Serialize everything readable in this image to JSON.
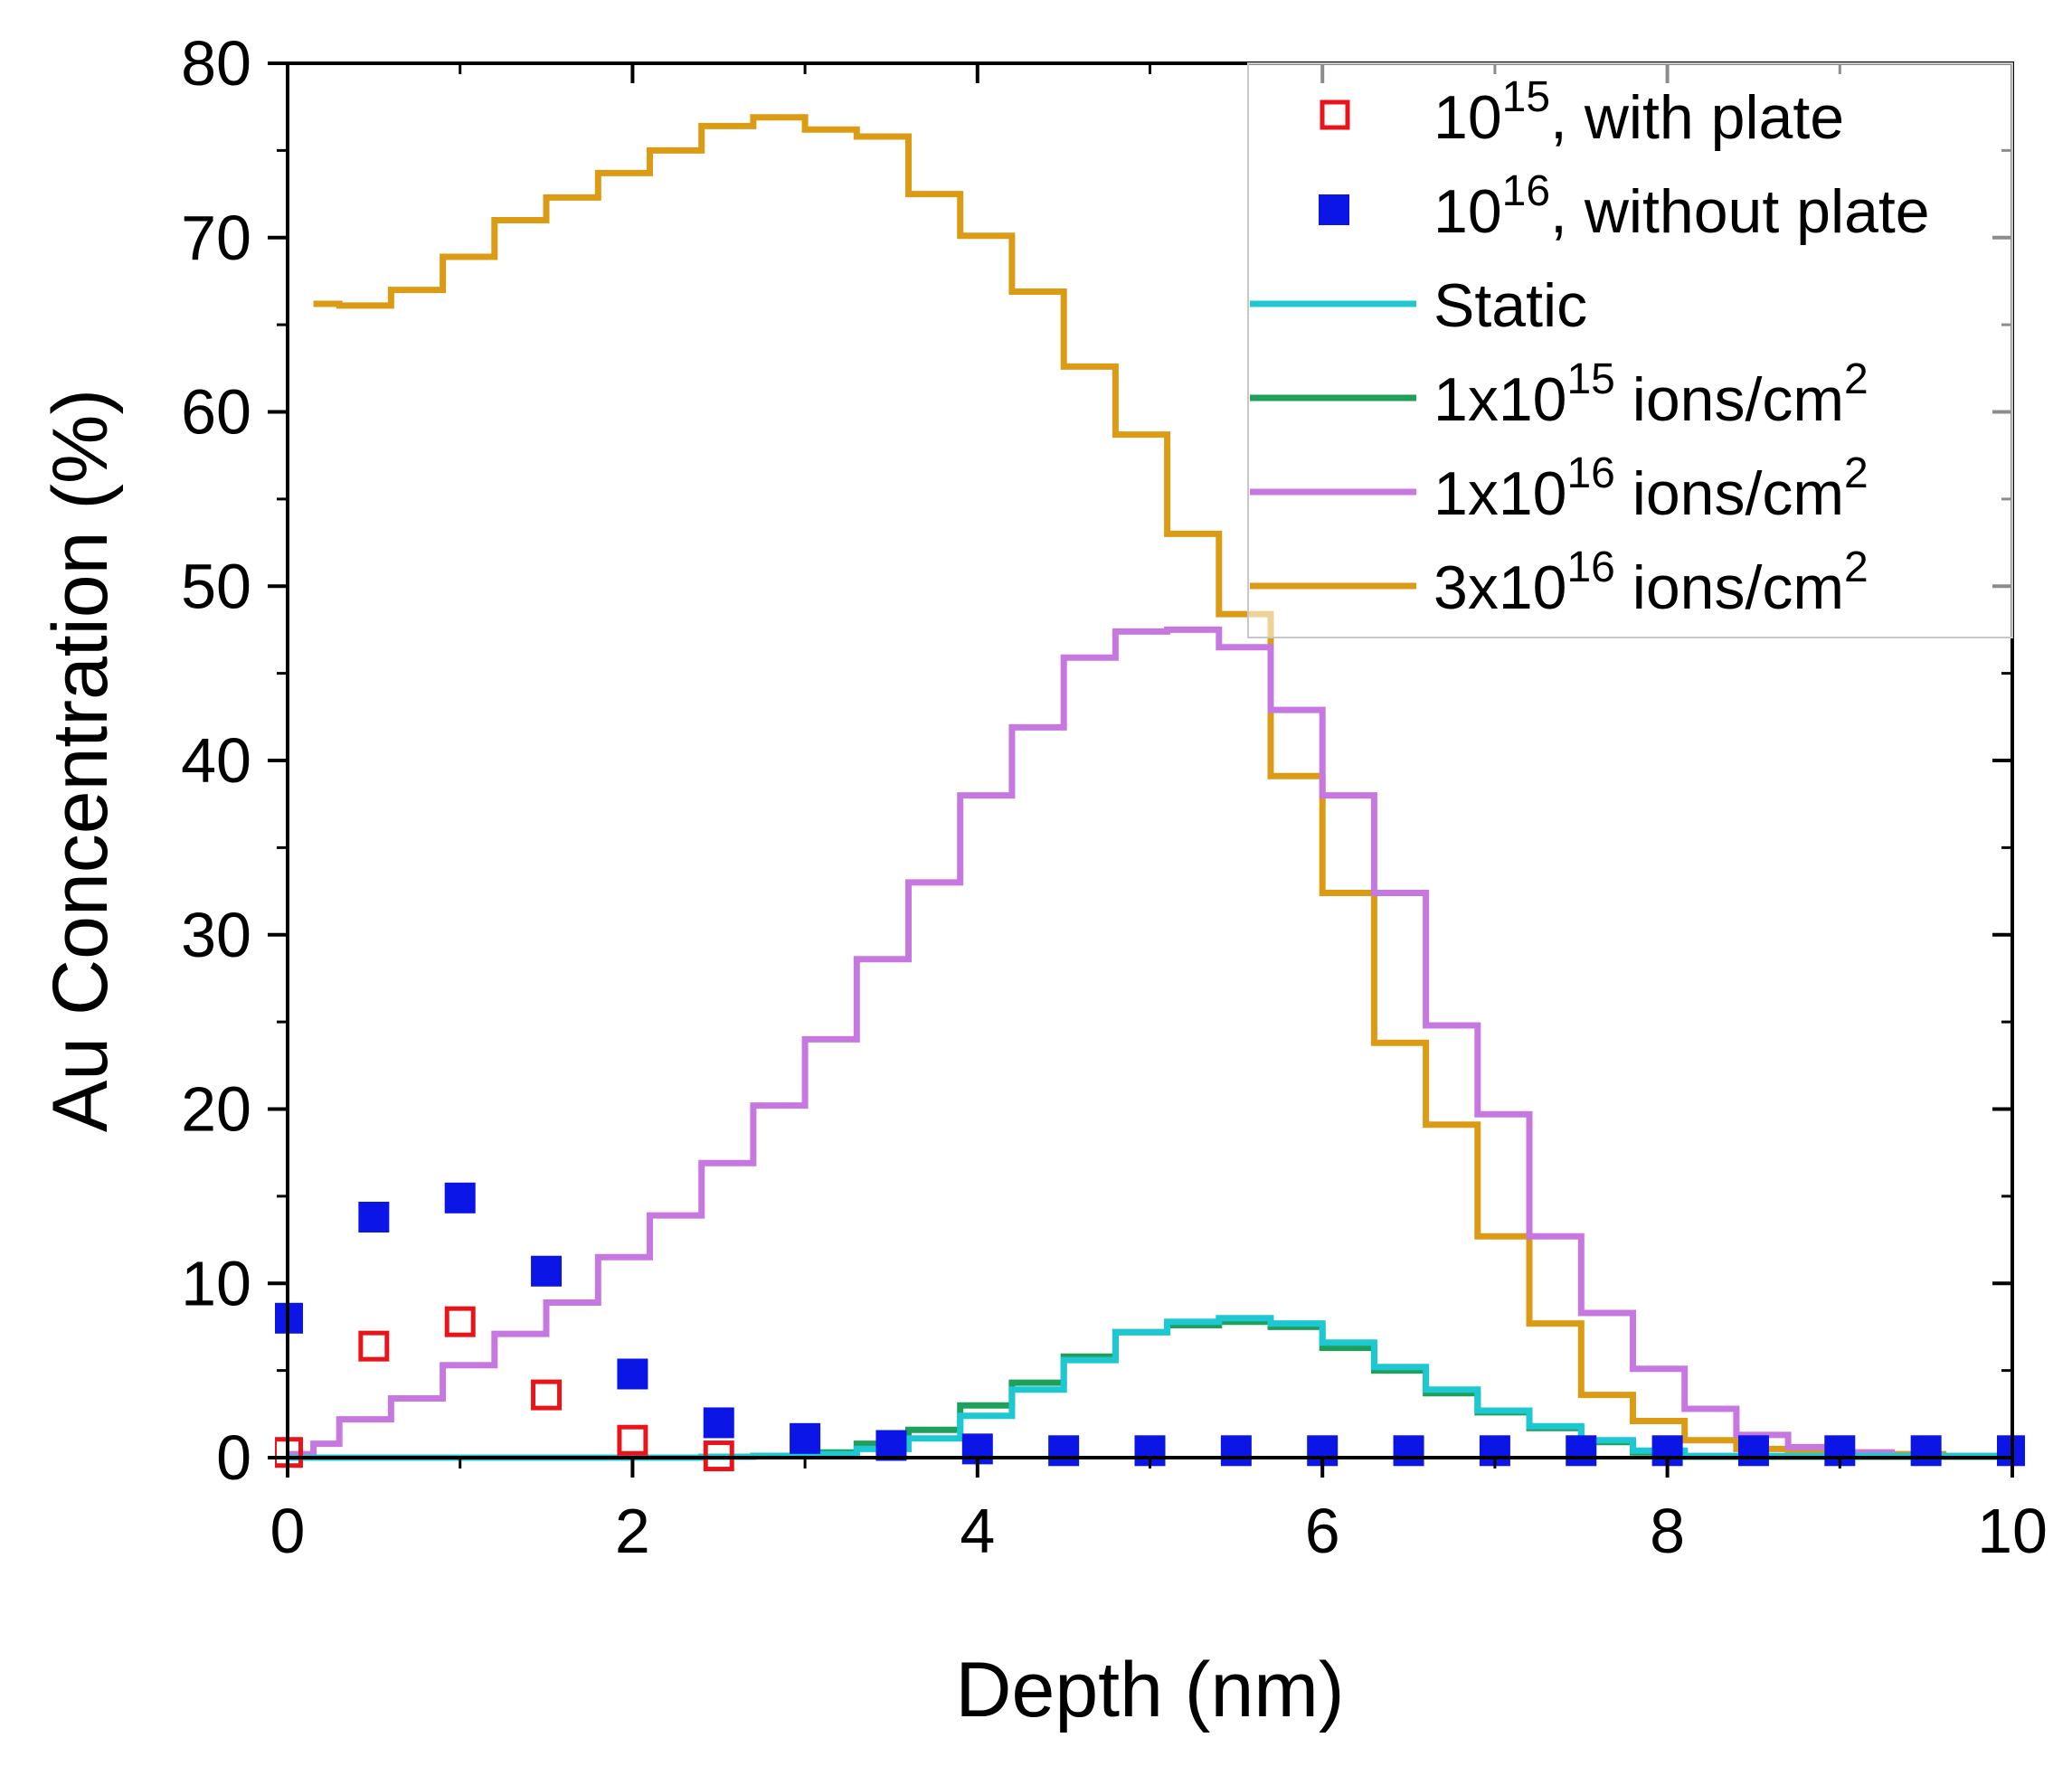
{
  "chart_data": {
    "type": "line",
    "title": "",
    "xlabel": "Depth (nm)",
    "ylabel": "Au Concentration (%)",
    "xlim": [
      0,
      10
    ],
    "ylim": [
      0,
      80
    ],
    "xticks": [
      0,
      2,
      4,
      6,
      8,
      10
    ],
    "yticks": [
      0,
      10,
      20,
      30,
      40,
      50,
      60,
      70,
      80
    ],
    "grid": false,
    "legend_position": "top-right",
    "legend": [
      {
        "label_main": "10",
        "label_sup": "15",
        "label_tail": ", with plate",
        "label_sup2": "",
        "style": "open-square",
        "color": "#e8141a"
      },
      {
        "label_main": "10",
        "label_sup": "16",
        "label_tail": ", without plate",
        "label_sup2": "",
        "style": "filled-square",
        "color": "#0b16e6"
      },
      {
        "label_main": "Static",
        "label_sup": "",
        "label_tail": "",
        "label_sup2": "",
        "style": "line",
        "color": "#1ec8d2"
      },
      {
        "label_main": "1x10",
        "label_sup": "15",
        "label_tail": " ions/cm",
        "label_sup2": "2",
        "style": "line",
        "color": "#1ea05a"
      },
      {
        "label_main": "1x10",
        "label_sup": "16",
        "label_tail": " ions/cm",
        "label_sup2": "2",
        "style": "line",
        "color": "#c778e0"
      },
      {
        "label_main": "3x10",
        "label_sup": "16",
        "label_tail": " ions/cm",
        "label_sup2": "2",
        "style": "line",
        "color": "#dc9b14"
      }
    ],
    "series": [
      {
        "name": "10^15, with plate",
        "kind": "scatter",
        "marker": "open-square",
        "color": "#e8141a",
        "x": [
          0,
          0.5,
          1.0,
          1.5,
          2.0,
          2.5
        ],
        "y": [
          0.3,
          6.4,
          7.8,
          3.6,
          1.0,
          0.1
        ]
      },
      {
        "name": "10^16, without plate",
        "kind": "scatter",
        "marker": "filled-square",
        "color": "#0b16e6",
        "x": [
          0,
          0.5,
          1.0,
          1.5,
          2.0,
          2.5,
          3.0,
          3.5,
          4.0,
          4.5,
          5.0,
          5.5,
          6.0,
          6.5,
          7.0,
          7.5,
          8.0,
          8.5,
          9.0,
          9.5,
          10.0
        ],
        "y": [
          8.0,
          13.8,
          14.9,
          10.7,
          4.8,
          2.0,
          1.1,
          0.7,
          0.5,
          0.4,
          0.4,
          0.4,
          0.4,
          0.4,
          0.4,
          0.4,
          0.4,
          0.4,
          0.4,
          0.4,
          0.4
        ]
      },
      {
        "name": "1x10^15 ions/cm2",
        "kind": "step",
        "color": "#1ea05a",
        "x_edges": [
          0,
          2.4,
          2.7,
          3.0,
          3.3,
          3.6,
          3.9,
          4.2,
          4.5,
          4.8,
          5.1,
          5.4,
          5.7,
          6.0,
          6.3,
          6.6,
          6.9,
          7.2,
          7.5,
          7.8,
          8.1,
          10
        ],
        "values": [
          0,
          0.05,
          0.1,
          0.3,
          0.8,
          1.6,
          3.0,
          4.3,
          5.8,
          7.2,
          7.6,
          7.8,
          7.5,
          6.3,
          5.0,
          3.7,
          2.6,
          1.7,
          0.9,
          0.3,
          0.05
        ]
      },
      {
        "name": "Static",
        "kind": "step",
        "color": "#1ec8d2",
        "x_edges": [
          0,
          2.4,
          2.7,
          3.0,
          3.3,
          3.6,
          3.9,
          4.2,
          4.5,
          4.8,
          5.1,
          5.4,
          5.7,
          6.0,
          6.3,
          6.6,
          6.9,
          7.2,
          7.5,
          7.8,
          8.1,
          10
        ],
        "values": [
          0,
          0.05,
          0.1,
          0.2,
          0.5,
          1.1,
          2.4,
          3.9,
          5.6,
          7.2,
          7.8,
          8.0,
          7.7,
          6.6,
          5.2,
          3.9,
          2.7,
          1.8,
          1.0,
          0.4,
          0.1
        ]
      },
      {
        "name": "1x10^16 ions/cm2",
        "kind": "step",
        "color": "#c778e0",
        "x_edges": [
          0,
          0.15,
          0.3,
          0.6,
          0.9,
          1.2,
          1.5,
          1.8,
          2.1,
          2.4,
          2.7,
          3.0,
          3.3,
          3.6,
          3.9,
          4.2,
          4.5,
          4.8,
          5.1,
          5.4,
          5.7,
          6.0,
          6.3,
          6.6,
          6.9,
          7.2,
          7.5,
          7.8,
          8.1,
          8.4,
          8.7,
          9.0,
          9.3,
          9.6,
          10
        ],
        "values": [
          0.2,
          0.8,
          2.2,
          3.4,
          5.3,
          7.1,
          8.9,
          11.5,
          13.9,
          16.9,
          20.2,
          24.0,
          28.6,
          33.0,
          38.0,
          41.9,
          45.9,
          47.4,
          47.5,
          46.5,
          42.9,
          38.0,
          32.4,
          24.8,
          19.7,
          12.7,
          8.3,
          5.1,
          2.8,
          1.3,
          0.6,
          0.3,
          0.1,
          0.05
        ]
      },
      {
        "name": "3x10^16 ions/cm2",
        "kind": "step",
        "color": "#dc9b14",
        "x_edges": [
          0.15,
          0.3,
          0.6,
          0.9,
          1.2,
          1.5,
          1.8,
          2.1,
          2.4,
          2.7,
          3.0,
          3.3,
          3.6,
          3.9,
          4.2,
          4.5,
          4.8,
          5.1,
          5.4,
          5.7,
          6.0,
          6.3,
          6.6,
          6.9,
          7.2,
          7.5,
          7.8,
          8.1,
          8.4,
          8.7,
          9.0,
          9.3,
          9.6,
          10
        ],
        "values": [
          66.2,
          66.1,
          67.0,
          68.9,
          71.0,
          72.3,
          73.7,
          75.0,
          76.4,
          76.9,
          76.2,
          75.8,
          72.5,
          70.1,
          66.9,
          62.6,
          58.7,
          53.0,
          48.4,
          39.1,
          32.4,
          23.8,
          19.1,
          12.7,
          7.7,
          3.6,
          2.1,
          1.0,
          0.5,
          0.4,
          0.3,
          0.2,
          0.1
        ]
      }
    ]
  }
}
